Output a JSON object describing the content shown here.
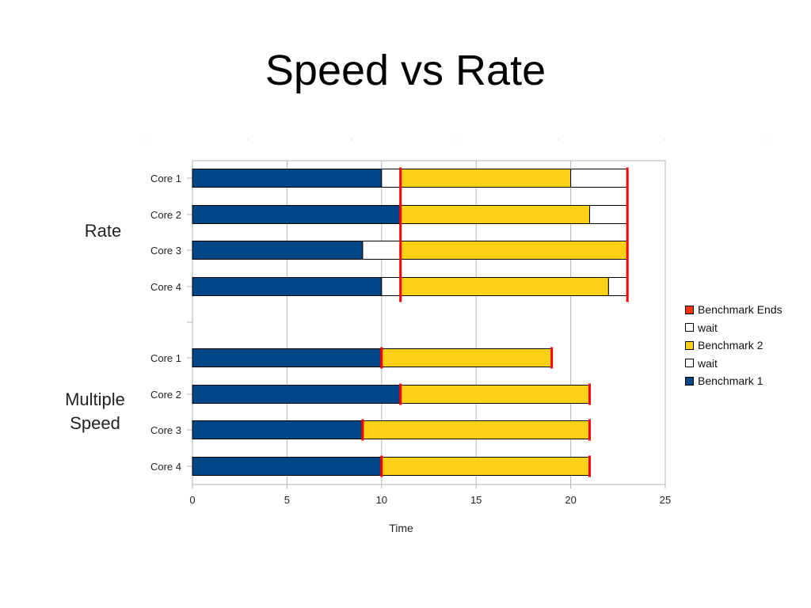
{
  "title": "Speed vs Rate",
  "group_labels": {
    "rate": "Rate",
    "speed_line1": "Multiple",
    "speed_line2": "Speed"
  },
  "legend": [
    {
      "label": "Benchmark Ends",
      "color": "#ff3300"
    },
    {
      "label": "wait",
      "color": "#ffffff"
    },
    {
      "label": "Benchmark 2",
      "color": "#fcd116"
    },
    {
      "label": "wait",
      "color": "#ffffff"
    },
    {
      "label": "Benchmark 1",
      "color": "#004586"
    }
  ],
  "colors": {
    "benchmark1": "#004586",
    "benchmark2": "#fcd116",
    "wait": "#ffffff",
    "end_marker": "#ff0000",
    "grid": "#b3b3b3"
  },
  "chart_data": {
    "type": "bar",
    "orientation": "horizontal",
    "stacked": true,
    "xlabel": "Time",
    "ylabel": "",
    "xlim": [
      0,
      25
    ],
    "xticks": [
      0,
      5,
      10,
      15,
      20,
      25
    ],
    "grid": "vertical",
    "legend_position": "right",
    "categories": [
      "Core 1",
      "Core 2",
      "Core 3",
      "Core 4",
      "Core 1",
      "Core 2",
      "Core 3",
      "Core 4"
    ],
    "groups": [
      {
        "name": "Rate",
        "categories": [
          0,
          1,
          2,
          3
        ]
      },
      {
        "name": "Multiple Speed",
        "categories": [
          4,
          5,
          6,
          7
        ]
      }
    ],
    "series": [
      {
        "name": "Benchmark 1",
        "values": [
          10,
          11,
          9,
          10,
          10,
          11,
          9,
          10
        ]
      },
      {
        "name": "wait",
        "values": [
          1,
          0,
          2,
          1,
          0,
          0,
          0,
          0
        ]
      },
      {
        "name": "Benchmark 2",
        "values": [
          9,
          10,
          12,
          11,
          9,
          10,
          12,
          11
        ]
      },
      {
        "name": "wait",
        "values": [
          3,
          2,
          0,
          1,
          0,
          0,
          0,
          0
        ]
      }
    ],
    "benchmark_ends": [
      [
        11,
        23
      ],
      [
        11,
        23
      ],
      [
        11,
        23
      ],
      [
        11,
        23
      ],
      [
        10,
        19
      ],
      [
        11,
        21
      ],
      [
        9,
        21
      ],
      [
        10,
        21
      ]
    ]
  }
}
